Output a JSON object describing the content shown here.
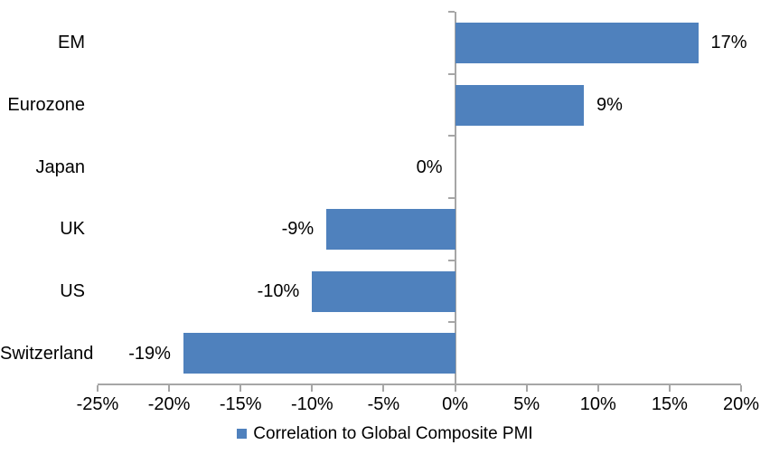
{
  "chart_data": {
    "type": "bar",
    "orientation": "horizontal",
    "categories": [
      "EM",
      "Eurozone",
      "Japan",
      "UK",
      "US",
      "Switzerland"
    ],
    "values": [
      17,
      9,
      0,
      -9,
      -10,
      -19
    ],
    "data_labels": [
      "17%",
      "9%",
      "0%",
      "-9%",
      "-10%",
      "-19%"
    ],
    "series_name": "Correlation to Global Composite PMI",
    "title": "",
    "xlabel": "",
    "ylabel": "",
    "xlim": [
      -25,
      20
    ],
    "x_tick_step": 5,
    "x_tick_labels": [
      "-25%",
      "-20%",
      "-15%",
      "-10%",
      "-5%",
      "0%",
      "5%",
      "10%",
      "15%",
      "20%"
    ],
    "grid": false,
    "legend_position": "bottom",
    "colors": {
      "bar": "#4F81BD",
      "axis": "#A6A6A6",
      "text": "#000000",
      "background": "#FFFFFF"
    }
  },
  "legend": {
    "label": "Correlation to Global Composite PMI"
  }
}
